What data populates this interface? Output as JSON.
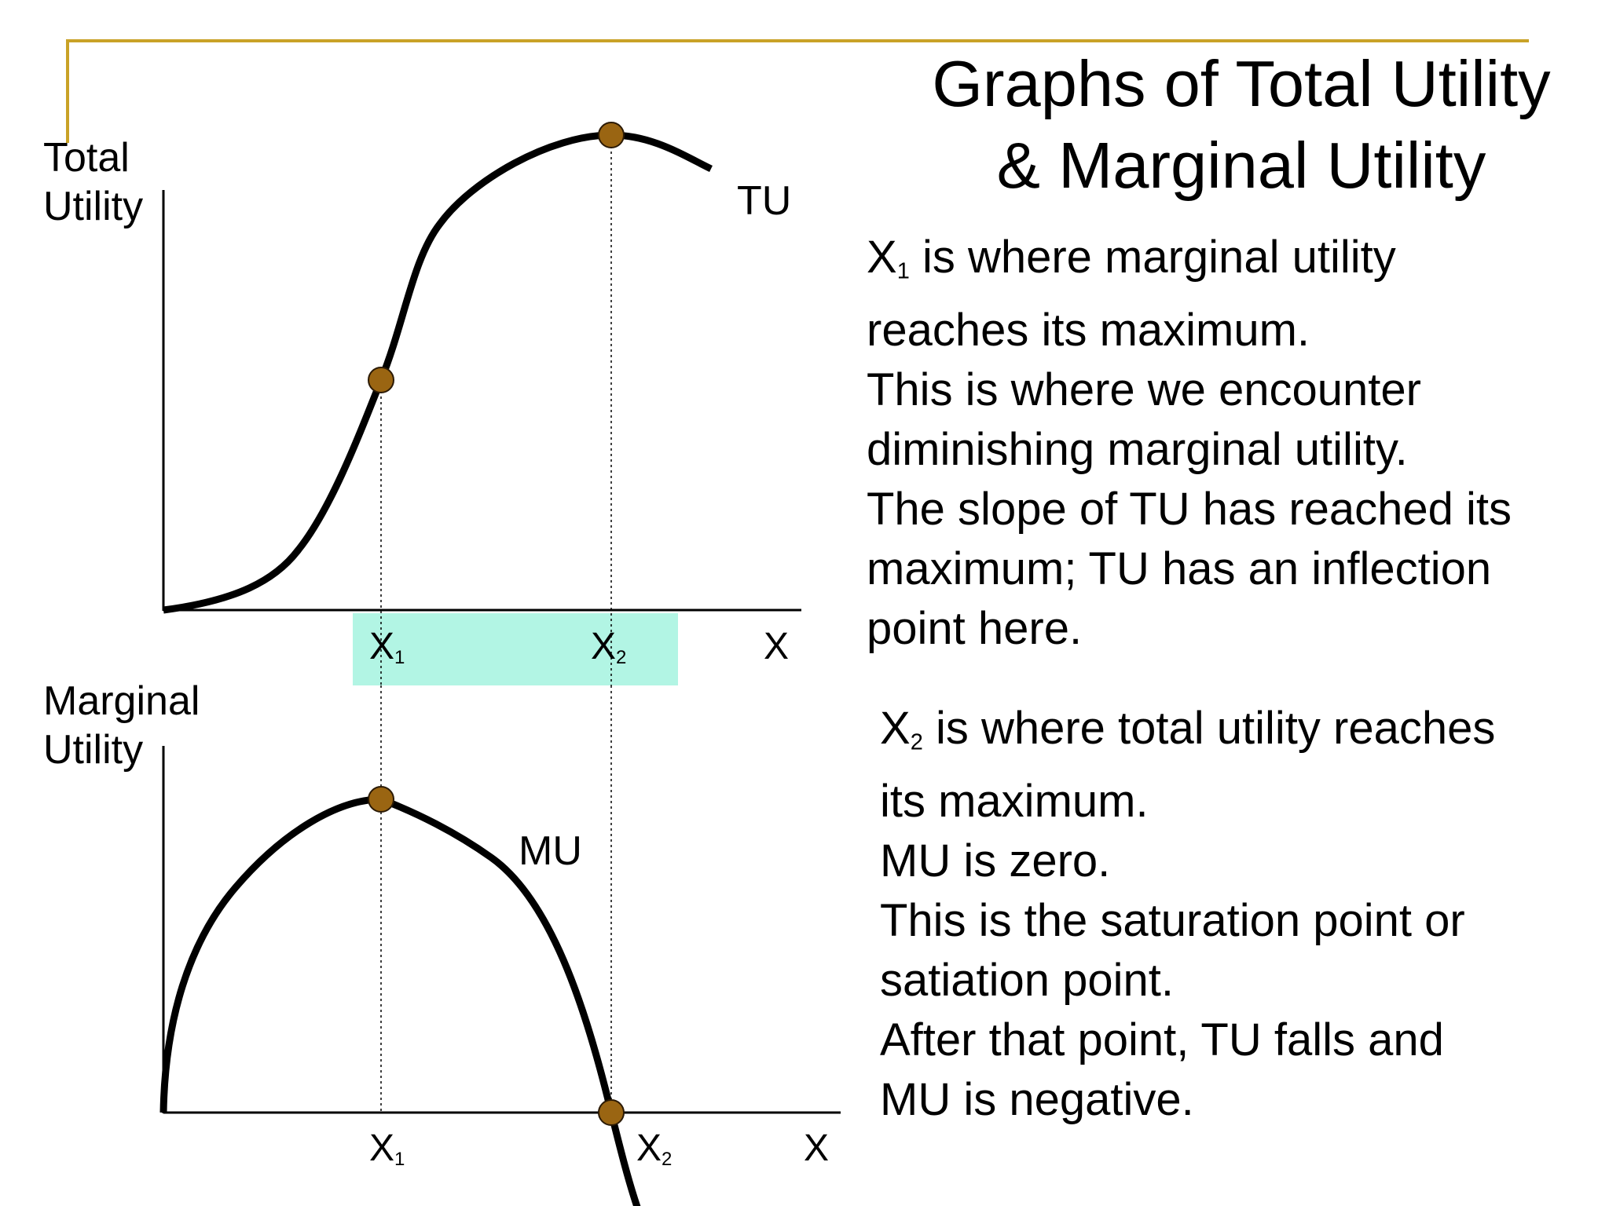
{
  "title": {
    "line1": "Graphs of Total Utility",
    "line2": "& Marginal Utility"
  },
  "paragraph1": {
    "x1_label": "X",
    "x1_sub": "1",
    "line1_rest": " is where marginal utility",
    "line2": "reaches its maximum.",
    "line3": "This is where we encounter",
    "line4": "diminishing marginal utility.",
    "line5": "The slope of TU has reached its",
    "line6": "maximum; TU has an inflection",
    "line7": "point here."
  },
  "paragraph2": {
    "x2_label": "X",
    "x2_sub": "2",
    "line1_rest": " is where total utility reaches",
    "line2": "its maximum.",
    "line3": "MU is zero.",
    "line4": "This is the saturation point or",
    "line5": "satiation point.",
    "line6": "After that point, TU falls and",
    "line7": "MU is negative."
  },
  "top_graph": {
    "ylabel_line1": "Total",
    "ylabel_line2": "Utility",
    "curve_label": "TU",
    "x_axis_label": "X",
    "tick1": "X",
    "tick1_sub": "1",
    "tick2": "X",
    "tick2_sub": "2"
  },
  "bottom_graph": {
    "ylabel_line1": "Marginal",
    "ylabel_line2": "Utility",
    "curve_label": "MU",
    "x_axis_label": "X",
    "tick1": "X",
    "tick1_sub": "1",
    "tick2": "X",
    "tick2_sub": "2"
  },
  "colors": {
    "accent": "#c9a227",
    "marker": "#9a6512",
    "highlight": "#b2f5e4",
    "curve": "#000000"
  }
}
